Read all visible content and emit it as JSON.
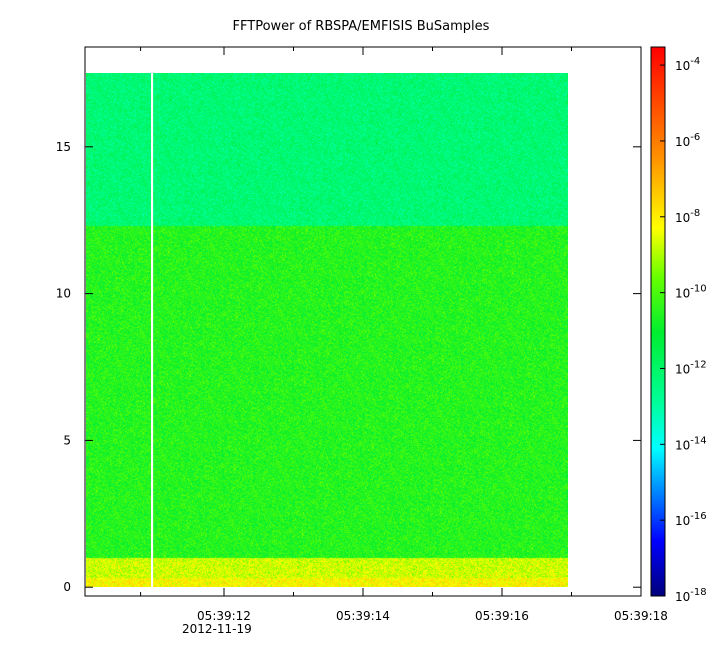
{
  "chart_data": {
    "type": "heatmap",
    "title": "FFTPower of RBSPA/EMFISIS  BuSamples",
    "xlabel": "",
    "ylabel": "",
    "x_date_label": "2012-11-19",
    "xlim": [
      10.0,
      18.0
    ],
    "ylim": [
      -0.3,
      18.4
    ],
    "xticks": [
      {
        "value": 12,
        "label": "05:39:12"
      },
      {
        "value": 14,
        "label": "05:39:14"
      },
      {
        "value": 16,
        "label": "05:39:16"
      },
      {
        "value": 18,
        "label": "05:39:18"
      }
    ],
    "x_minor_ticks": [
      10.8,
      13.0,
      15.0,
      17.0
    ],
    "yticks": [
      {
        "value": 0,
        "label": "0"
      },
      {
        "value": 5,
        "label": "5"
      },
      {
        "value": 10,
        "label": "10"
      },
      {
        "value": 15,
        "label": "15"
      }
    ],
    "data_extent": {
      "x": [
        10.0,
        16.95
      ],
      "y": [
        0,
        17.5
      ]
    },
    "data_gap_x": [
      10.95,
      10.98
    ],
    "colorbar": {
      "scale": "log",
      "range": [
        1e-18,
        0.0003
      ],
      "ticks": [
        {
          "value": 0.0001,
          "base": "10",
          "exp": "-4"
        },
        {
          "value": 1e-06,
          "base": "10",
          "exp": "-6"
        },
        {
          "value": 1e-08,
          "base": "10",
          "exp": "-8"
        },
        {
          "value": 1e-10,
          "base": "10",
          "exp": "-10"
        },
        {
          "value": 1e-12,
          "base": "10",
          "exp": "-12"
        },
        {
          "value": 1e-14,
          "base": "10",
          "exp": "-14"
        },
        {
          "value": 1e-16,
          "base": "10",
          "exp": "-16"
        },
        {
          "value": 1e-18,
          "base": "10",
          "exp": "-18"
        }
      ]
    },
    "power_bands": [
      {
        "y_range": [
          0,
          0.3
        ],
        "level": 7e-09
      },
      {
        "y_range": [
          0.3,
          1.0
        ],
        "level": 2e-09
      },
      {
        "y_range": [
          1.0,
          12.3
        ],
        "level": 3e-11
      },
      {
        "y_range": [
          12.3,
          17.5
        ],
        "level": 6e-13
      }
    ],
    "colors": {
      "dark_red": "#800000",
      "red": "#ff0000",
      "orange": "#ff8000",
      "yellow": "#ffff00",
      "green": "#20e020",
      "aqua_green": "#00ff80",
      "cyan": "#00ffff",
      "blue": "#0000ff",
      "navy": "#000080"
    }
  }
}
